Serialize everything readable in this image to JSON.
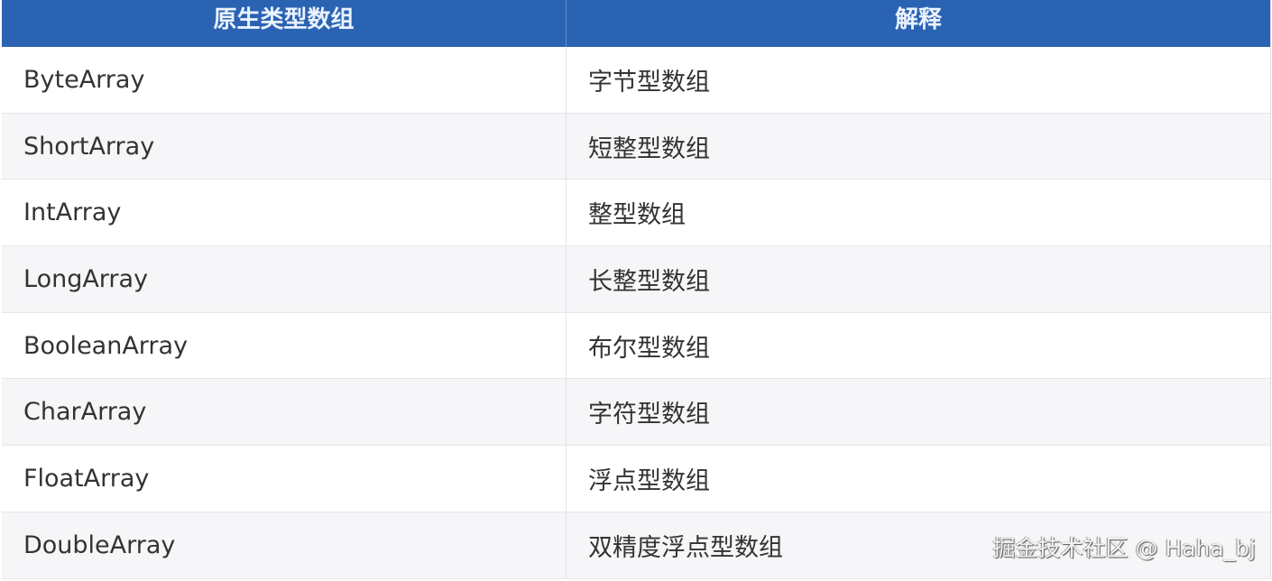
{
  "table": {
    "headers": [
      "原生类型数组",
      "解释"
    ],
    "rows": [
      [
        "ByteArray",
        "字节型数组"
      ],
      [
        "ShortArray",
        "短整型数组"
      ],
      [
        "IntArray",
        "整型数组"
      ],
      [
        "LongArray",
        "长整型数组"
      ],
      [
        "BooleanArray",
        "布尔型数组"
      ],
      [
        "CharArray",
        "字符型数组"
      ],
      [
        "FloatArray",
        "浮点型数组"
      ],
      [
        "DoubleArray",
        "双精度浮点型数组"
      ]
    ]
  },
  "watermark": "掘金技术社区 @ Haha_bj",
  "colors": {
    "header_bg": "#2a63b2",
    "stripe": "#f6f6f8"
  }
}
